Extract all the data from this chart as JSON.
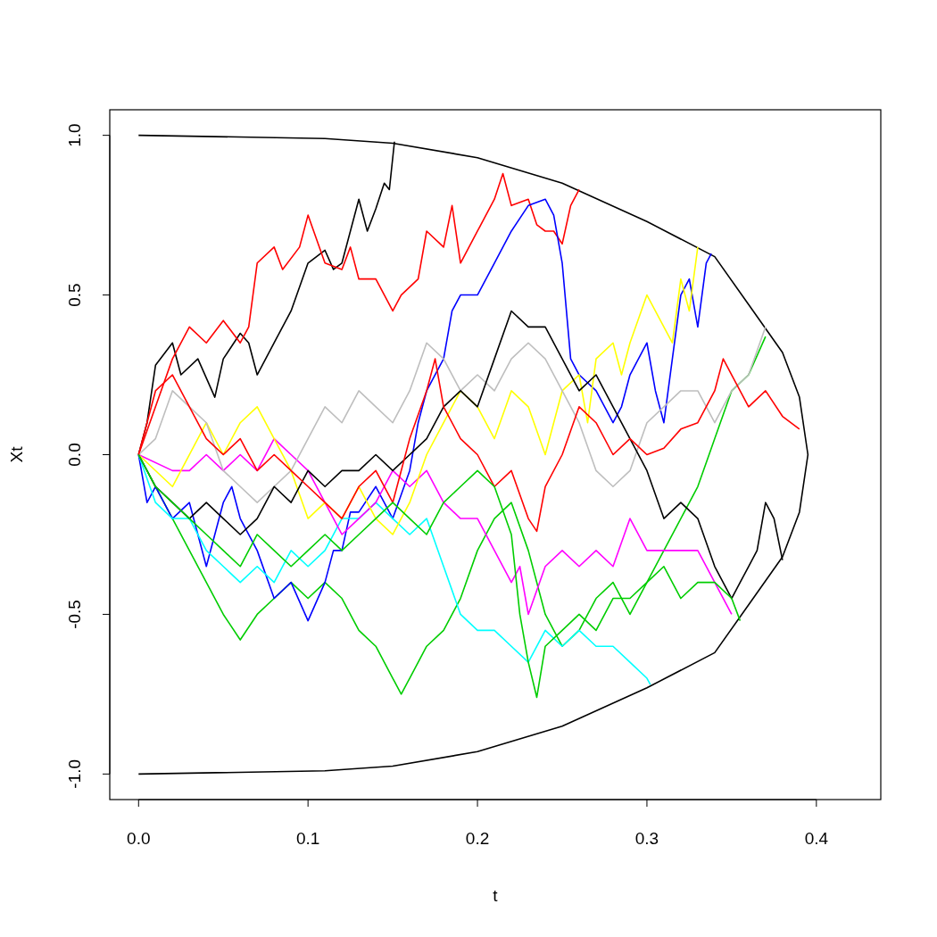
{
  "chart_data": {
    "type": "line",
    "xlabel": "t",
    "ylabel": "Xt",
    "xlim": [
      -0.017,
      0.438
    ],
    "ylim": [
      -1.08,
      1.08
    ],
    "xticks": [
      {
        "value": 0,
        "label": "0.0"
      },
      {
        "value": 0.1,
        "label": "0.1"
      },
      {
        "value": 0.2,
        "label": "0.2"
      },
      {
        "value": 0.3,
        "label": "0.3"
      },
      {
        "value": 0.4,
        "label": "0.4"
      }
    ],
    "yticks": [
      {
        "value": -1,
        "label": "-1.0"
      },
      {
        "value": -0.5,
        "label": "-0.5"
      },
      {
        "value": 0,
        "label": "0.0"
      },
      {
        "value": 0.5,
        "label": "0.5"
      },
      {
        "value": 1,
        "label": "1.0"
      }
    ],
    "series": [
      {
        "color": "#000000",
        "x": [
          0,
          0.11,
          0.15,
          0.2,
          0.25,
          0.3,
          0.34,
          0.36,
          0.38,
          0.39,
          0.395,
          0.39,
          0.38,
          0.36,
          0.34,
          0.3,
          0.25,
          0.2,
          0.15,
          0.11,
          0
        ],
        "values": [
          1,
          0.99,
          0.975,
          0.93,
          0.85,
          0.73,
          0.62,
          0.47,
          0.32,
          0.18,
          0,
          -0.18,
          -0.32,
          -0.47,
          -0.62,
          -0.73,
          -0.85,
          -0.93,
          -0.975,
          -0.99,
          -1
        ]
      },
      {
        "color": "#000000",
        "x": [
          0,
          0.005,
          0.01,
          0.02,
          0.025,
          0.035,
          0.045,
          0.05,
          0.06,
          0.065,
          0.07,
          0.08,
          0.09,
          0.1,
          0.11,
          0.115,
          0.12,
          0.13,
          0.135,
          0.14,
          0.145,
          0.148,
          0.151
        ],
        "values": [
          0,
          0.1,
          0.28,
          0.35,
          0.25,
          0.3,
          0.18,
          0.3,
          0.38,
          0.35,
          0.25,
          0.35,
          0.45,
          0.6,
          0.64,
          0.58,
          0.6,
          0.8,
          0.7,
          0.77,
          0.85,
          0.83,
          0.98
        ]
      },
      {
        "color": "#ff0000",
        "x": [
          0,
          0.01,
          0.02,
          0.03,
          0.04,
          0.05,
          0.06,
          0.065,
          0.07,
          0.08,
          0.085,
          0.095,
          0.1,
          0.11,
          0.12,
          0.125,
          0.13,
          0.14,
          0.15,
          0.155,
          0.165,
          0.17,
          0.18,
          0.185,
          0.19,
          0.2,
          0.21,
          0.215,
          0.22,
          0.23,
          0.235,
          0.24,
          0.245,
          0.25,
          0.255,
          0.26
        ],
        "values": [
          0,
          0.15,
          0.3,
          0.4,
          0.35,
          0.42,
          0.35,
          0.4,
          0.6,
          0.65,
          0.58,
          0.65,
          0.75,
          0.6,
          0.58,
          0.65,
          0.55,
          0.55,
          0.45,
          0.5,
          0.55,
          0.7,
          0.65,
          0.78,
          0.6,
          0.7,
          0.8,
          0.88,
          0.78,
          0.8,
          0.72,
          0.7,
          0.7,
          0.66,
          0.78,
          0.83
        ]
      },
      {
        "color": "#00cd00",
        "x": [
          0,
          0.01,
          0.02,
          0.03,
          0.04,
          0.05,
          0.06,
          0.07,
          0.08,
          0.09,
          0.1,
          0.11,
          0.12,
          0.13,
          0.14,
          0.15,
          0.155,
          0.16,
          0.17,
          0.18,
          0.19,
          0.2,
          0.21,
          0.22,
          0.23,
          0.24,
          0.25,
          0.26,
          0.27,
          0.28,
          0.29,
          0.3,
          0.31,
          0.32,
          0.33,
          0.34,
          0.35,
          0.36,
          0.37
        ],
        "values": [
          0,
          -0.1,
          -0.2,
          -0.3,
          -0.4,
          -0.5,
          -0.58,
          -0.5,
          -0.45,
          -0.4,
          -0.45,
          -0.4,
          -0.45,
          -0.55,
          -0.6,
          -0.7,
          -0.75,
          -0.7,
          -0.6,
          -0.55,
          -0.45,
          -0.3,
          -0.2,
          -0.15,
          -0.3,
          -0.5,
          -0.6,
          -0.55,
          -0.45,
          -0.4,
          -0.5,
          -0.4,
          -0.3,
          -0.2,
          -0.1,
          0.05,
          0.2,
          0.25,
          0.37
        ]
      },
      {
        "color": "#0000ff",
        "x": [
          0,
          0.005,
          0.01,
          0.02,
          0.03,
          0.04,
          0.05,
          0.055,
          0.06,
          0.07,
          0.08,
          0.09,
          0.1,
          0.11,
          0.115,
          0.12,
          0.125,
          0.13,
          0.14,
          0.15,
          0.16,
          0.165,
          0.17,
          0.18,
          0.185,
          0.19,
          0.2,
          0.21,
          0.22,
          0.23,
          0.24,
          0.245,
          0.25,
          0.255,
          0.26,
          0.27,
          0.28,
          0.285,
          0.29,
          0.3,
          0.305,
          0.31,
          0.315,
          0.32,
          0.325,
          0.33,
          0.335,
          0.338
        ],
        "values": [
          0,
          -0.15,
          -0.1,
          -0.2,
          -0.15,
          -0.35,
          -0.15,
          -0.1,
          -0.2,
          -0.3,
          -0.45,
          -0.4,
          -0.52,
          -0.4,
          -0.3,
          -0.3,
          -0.18,
          -0.18,
          -0.1,
          -0.2,
          -0.05,
          0.1,
          0.2,
          0.3,
          0.45,
          0.5,
          0.5,
          0.6,
          0.7,
          0.78,
          0.8,
          0.75,
          0.6,
          0.3,
          0.25,
          0.2,
          0.1,
          0.15,
          0.25,
          0.35,
          0.2,
          0.1,
          0.3,
          0.5,
          0.55,
          0.4,
          0.6,
          0.63
        ]
      },
      {
        "color": "#00ffff",
        "x": [
          0,
          0.01,
          0.02,
          0.03,
          0.04,
          0.05,
          0.06,
          0.07,
          0.08,
          0.09,
          0.1,
          0.11,
          0.12,
          0.13,
          0.14,
          0.15,
          0.16,
          0.17,
          0.18,
          0.19,
          0.2,
          0.21,
          0.22,
          0.23,
          0.24,
          0.25,
          0.26,
          0.27,
          0.28,
          0.29,
          0.3,
          0.302
        ],
        "values": [
          0,
          -0.15,
          -0.2,
          -0.2,
          -0.3,
          -0.35,
          -0.4,
          -0.35,
          -0.4,
          -0.3,
          -0.35,
          -0.3,
          -0.2,
          -0.2,
          -0.15,
          -0.2,
          -0.25,
          -0.2,
          -0.35,
          -0.5,
          -0.55,
          -0.55,
          -0.6,
          -0.65,
          -0.55,
          -0.6,
          -0.55,
          -0.6,
          -0.6,
          -0.65,
          -0.7,
          -0.72
        ]
      },
      {
        "color": "#ff00ff",
        "x": [
          0,
          0.02,
          0.03,
          0.04,
          0.05,
          0.06,
          0.07,
          0.08,
          0.09,
          0.1,
          0.11,
          0.12,
          0.13,
          0.14,
          0.15,
          0.16,
          0.17,
          0.18,
          0.19,
          0.2,
          0.21,
          0.22,
          0.225,
          0.23,
          0.24,
          0.25,
          0.26,
          0.27,
          0.28,
          0.29,
          0.3,
          0.31,
          0.32,
          0.33,
          0.34,
          0.35
        ],
        "values": [
          0,
          -0.05,
          -0.05,
          0,
          -0.05,
          0,
          -0.05,
          0.05,
          0,
          -0.05,
          -0.15,
          -0.25,
          -0.2,
          -0.15,
          -0.05,
          -0.1,
          -0.05,
          -0.15,
          -0.2,
          -0.2,
          -0.3,
          -0.4,
          -0.35,
          -0.5,
          -0.35,
          -0.3,
          -0.35,
          -0.3,
          -0.35,
          -0.2,
          -0.3,
          -0.3,
          -0.3,
          -0.3,
          -0.4,
          -0.5
        ]
      },
      {
        "color": "#ffff00",
        "x": [
          0,
          0.02,
          0.04,
          0.05,
          0.06,
          0.07,
          0.08,
          0.09,
          0.1,
          0.11,
          0.12,
          0.13,
          0.14,
          0.15,
          0.16,
          0.17,
          0.18,
          0.19,
          0.2,
          0.21,
          0.22,
          0.23,
          0.24,
          0.25,
          0.26,
          0.265,
          0.27,
          0.28,
          0.285,
          0.29,
          0.3,
          0.31,
          0.315,
          0.32,
          0.325,
          0.33
        ],
        "values": [
          0,
          -0.1,
          0.1,
          0,
          0.1,
          0.15,
          0.05,
          -0.05,
          -0.2,
          -0.15,
          -0.2,
          -0.1,
          -0.2,
          -0.25,
          -0.15,
          0,
          0.1,
          0.2,
          0.15,
          0.05,
          0.2,
          0.15,
          0,
          0.2,
          0.25,
          0.1,
          0.3,
          0.35,
          0.25,
          0.35,
          0.5,
          0.4,
          0.35,
          0.55,
          0.45,
          0.65
        ]
      },
      {
        "color": "#bebebe",
        "x": [
          0,
          0.01,
          0.02,
          0.03,
          0.04,
          0.05,
          0.06,
          0.07,
          0.08,
          0.09,
          0.1,
          0.11,
          0.12,
          0.13,
          0.14,
          0.15,
          0.16,
          0.17,
          0.18,
          0.19,
          0.2,
          0.21,
          0.22,
          0.23,
          0.24,
          0.25,
          0.26,
          0.27,
          0.28,
          0.29,
          0.3,
          0.31,
          0.32,
          0.33,
          0.34,
          0.35,
          0.36,
          0.37
        ],
        "values": [
          0,
          0.05,
          0.2,
          0.15,
          0.1,
          -0.05,
          -0.1,
          -0.15,
          -0.1,
          -0.05,
          0.05,
          0.15,
          0.1,
          0.2,
          0.15,
          0.1,
          0.2,
          0.35,
          0.3,
          0.2,
          0.25,
          0.2,
          0.3,
          0.35,
          0.3,
          0.2,
          0.1,
          -0.05,
          -0.1,
          -0.05,
          0.1,
          0.15,
          0.2,
          0.2,
          0.1,
          0.2,
          0.25,
          0.4
        ]
      },
      {
        "color": "#000000",
        "x": [
          0,
          0.01,
          0.02,
          0.03,
          0.04,
          0.05,
          0.06,
          0.07,
          0.08,
          0.09,
          0.1,
          0.11,
          0.12,
          0.13,
          0.14,
          0.15,
          0.16,
          0.17,
          0.18,
          0.19,
          0.2,
          0.21,
          0.22,
          0.23,
          0.24,
          0.25,
          0.26,
          0.27,
          0.28,
          0.29,
          0.3,
          0.31,
          0.32,
          0.33,
          0.34,
          0.35,
          0.355,
          0.36,
          0.365,
          0.37,
          0.375,
          0.38
        ],
        "values": [
          0,
          -0.1,
          -0.15,
          -0.2,
          -0.15,
          -0.2,
          -0.25,
          -0.2,
          -0.1,
          -0.15,
          -0.05,
          -0.1,
          -0.05,
          -0.05,
          0,
          -0.05,
          0,
          0.05,
          0.15,
          0.2,
          0.15,
          0.3,
          0.45,
          0.4,
          0.4,
          0.3,
          0.2,
          0.25,
          0.15,
          0.05,
          -0.05,
          -0.2,
          -0.15,
          -0.2,
          -0.35,
          -0.45,
          -0.4,
          -0.35,
          -0.3,
          -0.15,
          -0.2,
          -0.33
        ]
      },
      {
        "color": "#ff0000",
        "x": [
          0,
          0.01,
          0.02,
          0.03,
          0.04,
          0.05,
          0.06,
          0.07,
          0.08,
          0.09,
          0.1,
          0.11,
          0.12,
          0.13,
          0.14,
          0.15,
          0.16,
          0.17,
          0.175,
          0.18,
          0.19,
          0.2,
          0.21,
          0.22,
          0.23,
          0.235,
          0.24,
          0.25,
          0.26,
          0.27,
          0.28,
          0.29,
          0.3,
          0.31,
          0.32,
          0.33,
          0.34,
          0.345,
          0.35,
          0.36,
          0.37,
          0.38,
          0.39
        ],
        "values": [
          0,
          0.2,
          0.25,
          0.15,
          0.05,
          0,
          0.05,
          -0.05,
          0,
          -0.05,
          -0.1,
          -0.15,
          -0.2,
          -0.1,
          -0.05,
          -0.15,
          0.05,
          0.2,
          0.3,
          0.15,
          0.05,
          0,
          -0.1,
          -0.05,
          -0.2,
          -0.24,
          -0.1,
          0,
          0.15,
          0.1,
          0,
          0.05,
          0,
          0.02,
          0.08,
          0.1,
          0.2,
          0.3,
          0.25,
          0.15,
          0.2,
          0.12,
          0.08
        ]
      },
      {
        "color": "#00cd00",
        "x": [
          0,
          0.01,
          0.02,
          0.03,
          0.04,
          0.05,
          0.06,
          0.07,
          0.08,
          0.09,
          0.1,
          0.11,
          0.12,
          0.13,
          0.14,
          0.15,
          0.16,
          0.17,
          0.18,
          0.19,
          0.2,
          0.21,
          0.22,
          0.225,
          0.23,
          0.235,
          0.24,
          0.25,
          0.26,
          0.27,
          0.28,
          0.29,
          0.3,
          0.31,
          0.32,
          0.33,
          0.34,
          0.35,
          0.355
        ],
        "values": [
          0,
          -0.1,
          -0.15,
          -0.2,
          -0.25,
          -0.3,
          -0.35,
          -0.25,
          -0.3,
          -0.35,
          -0.3,
          -0.25,
          -0.3,
          -0.25,
          -0.2,
          -0.15,
          -0.2,
          -0.25,
          -0.15,
          -0.1,
          -0.05,
          -0.1,
          -0.25,
          -0.5,
          -0.65,
          -0.76,
          -0.6,
          -0.55,
          -0.5,
          -0.55,
          -0.45,
          -0.45,
          -0.4,
          -0.35,
          -0.45,
          -0.4,
          -0.4,
          -0.45,
          -0.52
        ]
      }
    ]
  }
}
